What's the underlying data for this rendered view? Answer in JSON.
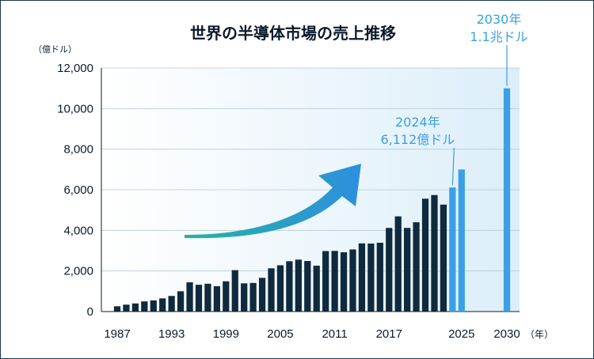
{
  "chart_data": {
    "type": "bar",
    "title": "世界の半導体市場の売上推移",
    "ylabel": "（億ドル）",
    "xunit": "（年）",
    "ylim": [
      0,
      12000
    ],
    "yticks": [
      "0",
      "2,000",
      "4,000",
      "6,000",
      "8,000",
      "10,000",
      "12,000"
    ],
    "xticks": [
      "1987",
      "1993",
      "1999",
      "2005",
      "2011",
      "2017",
      "2025",
      "2030"
    ],
    "grid": true,
    "actual_color": "#0f2a3d",
    "forecast_color": "#3aa0e6",
    "arrow_colors": [
      "#27b3a0",
      "#2d8fe0"
    ],
    "series": [
      {
        "type": "actual",
        "x": [
          1987,
          1988,
          1989,
          1990,
          1991,
          1992,
          1993,
          1994,
          1995,
          1996,
          1997,
          1998,
          1999,
          2000,
          2001,
          2002,
          2003,
          2004,
          2005,
          2006,
          2007,
          2008,
          2009,
          2010,
          2011,
          2012,
          2013,
          2014,
          2015,
          2016,
          2017,
          2018,
          2019,
          2020,
          2021,
          2022,
          2023
        ],
        "values": [
          260,
          340,
          400,
          500,
          550,
          650,
          770,
          1000,
          1440,
          1320,
          1370,
          1250,
          1490,
          2040,
          1390,
          1410,
          1660,
          2130,
          2280,
          2480,
          2560,
          2490,
          2260,
          2980,
          2990,
          2920,
          3060,
          3360,
          3350,
          3390,
          4120,
          4690,
          4120,
          4400,
          5560,
          5740,
          5270
        ]
      },
      {
        "type": "forecast",
        "x": [
          2024,
          2025,
          2030
        ],
        "values": [
          6112,
          7000,
          11000
        ]
      }
    ],
    "annotations": [
      {
        "line1": "2024年",
        "line2": "6,112億ドル",
        "x": 2024
      },
      {
        "line1": "2030年",
        "line2": "1.1兆ドル",
        "x": 2030
      }
    ]
  }
}
